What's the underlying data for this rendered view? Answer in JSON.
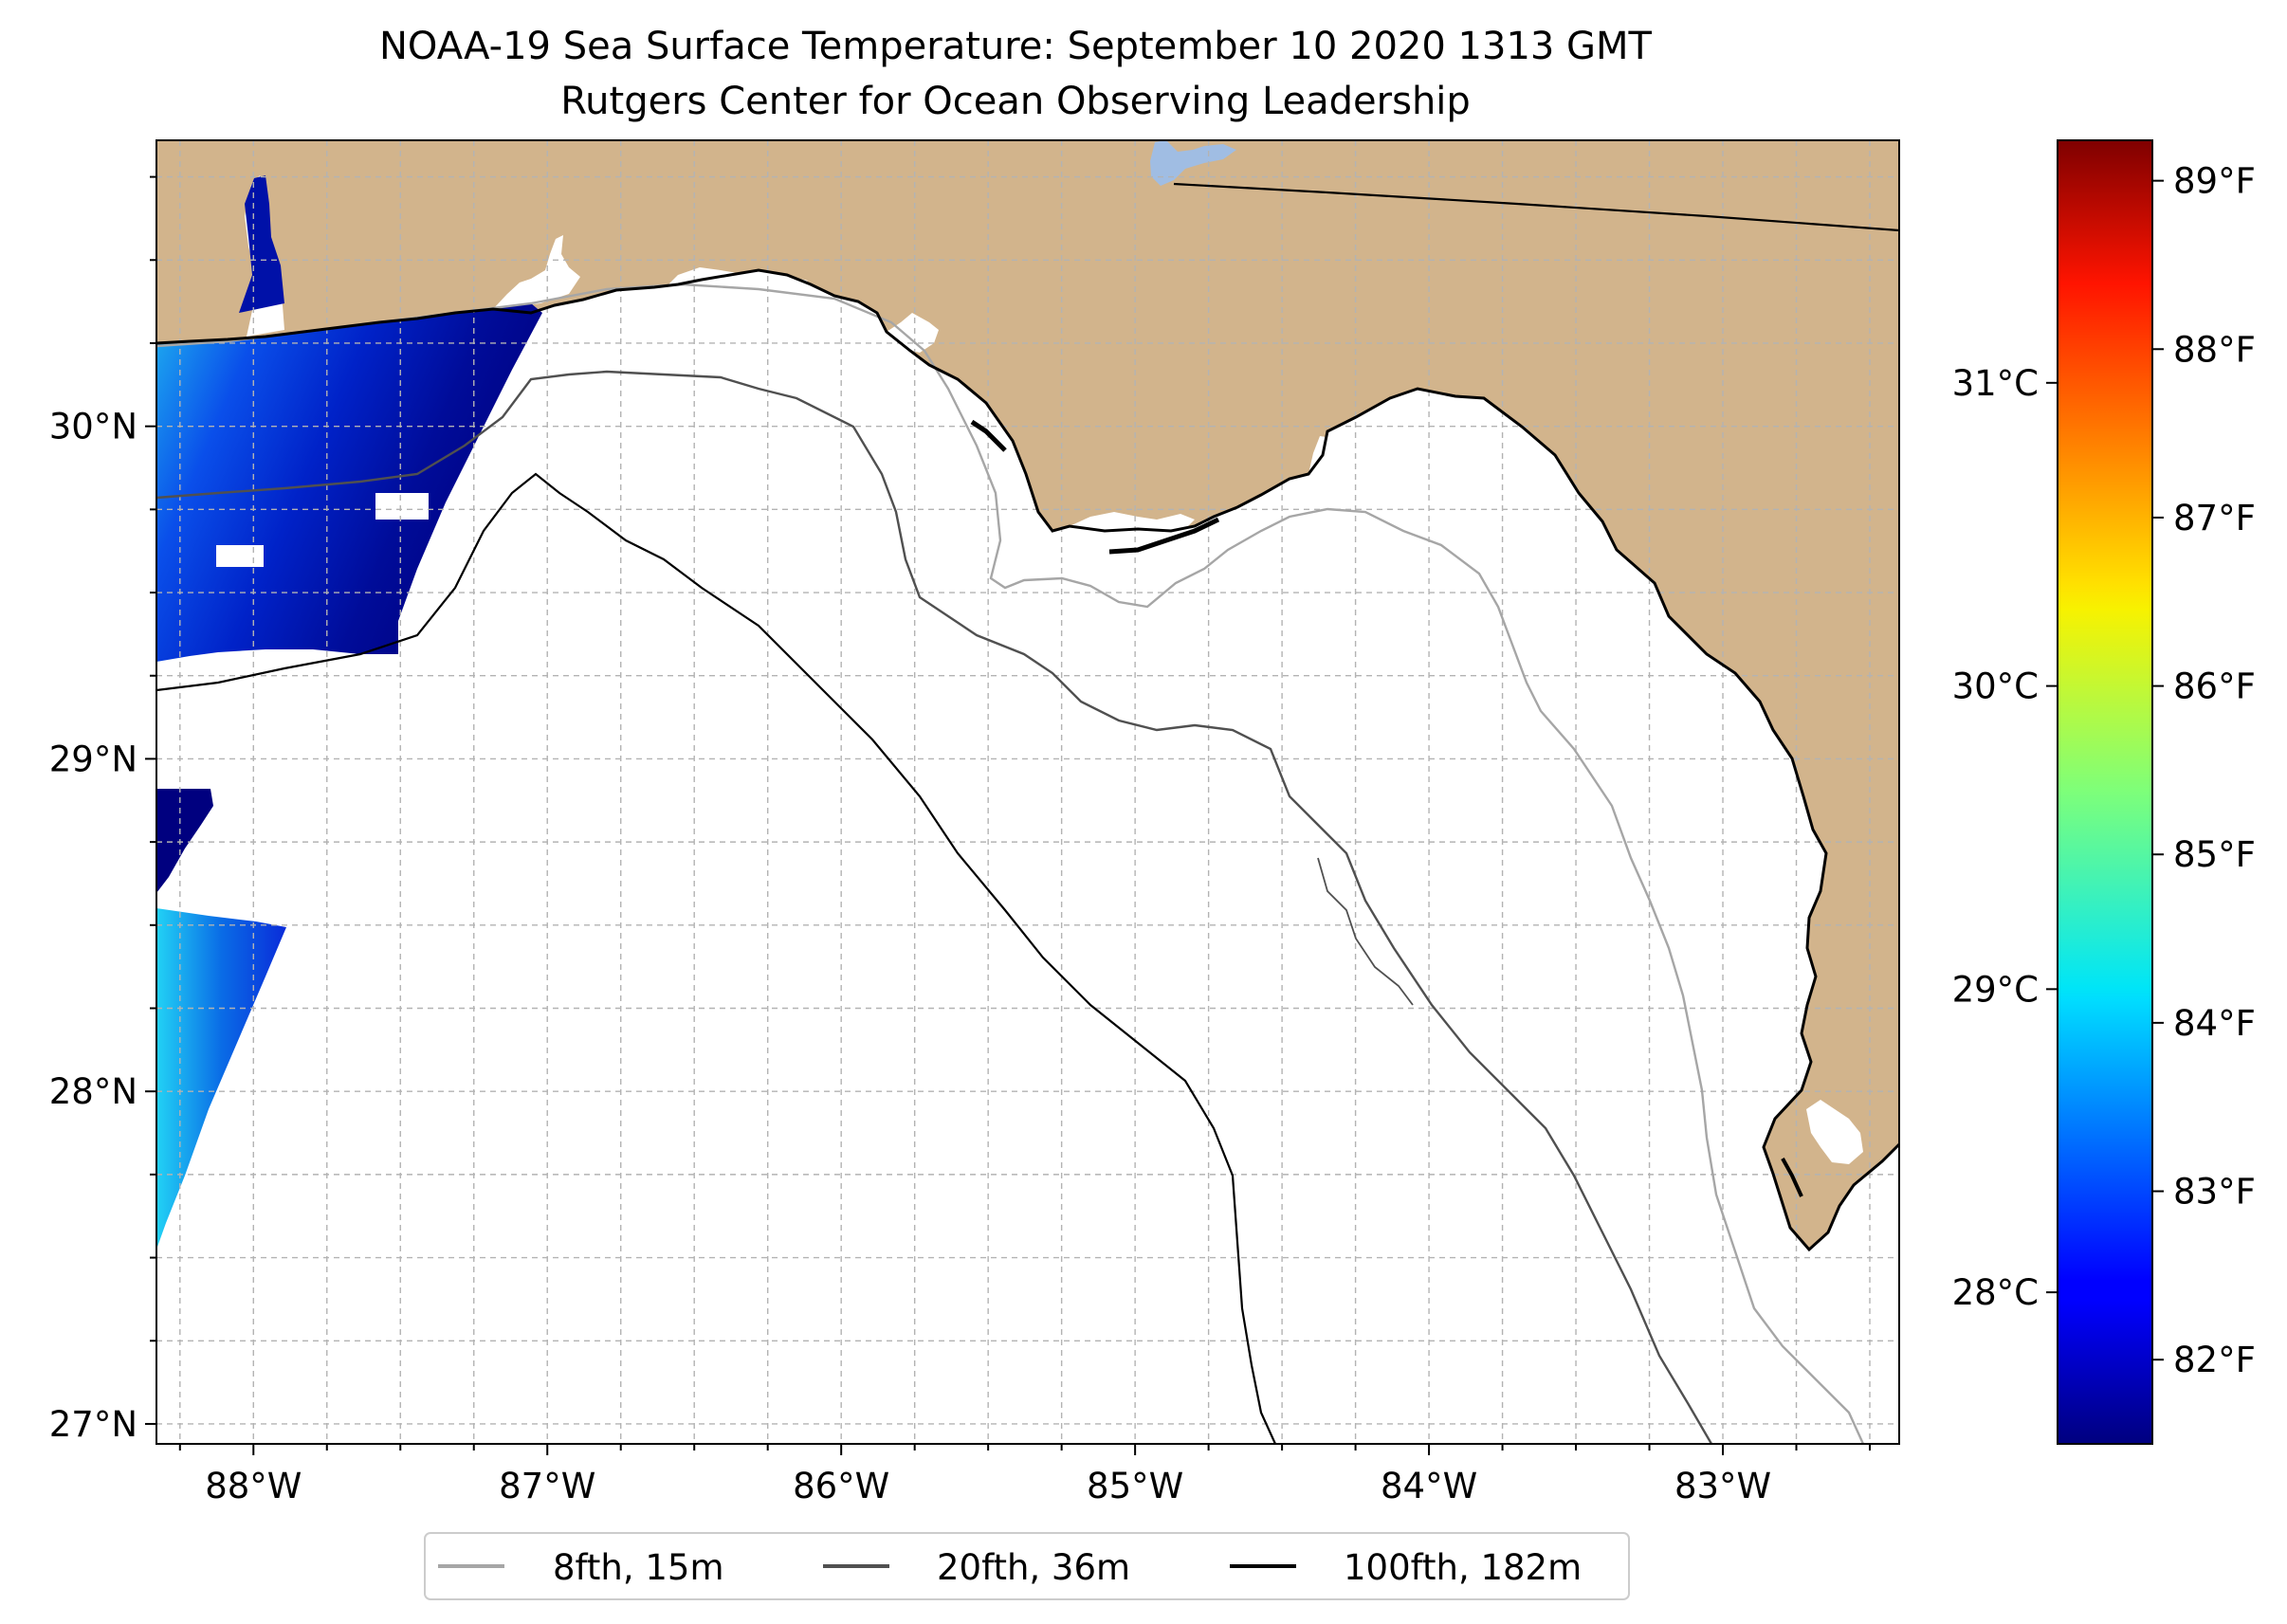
{
  "title": {
    "line1": "NOAA-19 Sea Surface Temperature: September 10 2020 1313 GMT",
    "line2": "Rutgers Center for Ocean Observing Leadership"
  },
  "map": {
    "lon_range": [
      -88.33,
      -82.4
    ],
    "lat_range": [
      26.94,
      30.86
    ],
    "lon_ticks": [
      {
        "value": -88,
        "label": "88°W"
      },
      {
        "value": -87,
        "label": "87°W"
      },
      {
        "value": -86,
        "label": "86°W"
      },
      {
        "value": -85,
        "label": "85°W"
      },
      {
        "value": -84,
        "label": "84°W"
      },
      {
        "value": -83,
        "label": "83°W"
      }
    ],
    "lat_ticks": [
      {
        "value": 27,
        "label": "27°N"
      },
      {
        "value": 28,
        "label": "28°N"
      },
      {
        "value": 29,
        "label": "29°N"
      },
      {
        "value": 30,
        "label": "30°N"
      }
    ],
    "grid": true,
    "grid_step_deg": 0.25,
    "colors": {
      "land": "#d2b48c",
      "ocean": "#ffffff",
      "lake": "#a0bde3",
      "coastline": "#000000",
      "grid": "#aaaaaa"
    }
  },
  "legend": {
    "placement": "bottom-center",
    "items": [
      {
        "label": "8fth, 15m",
        "color": "#a6a6a6"
      },
      {
        "label": "20fth, 36m",
        "color": "#505050"
      },
      {
        "label": "100fth, 182m",
        "color": "#000000"
      }
    ]
  },
  "colorbar": {
    "colormap": "jet",
    "range_c": [
      27.5,
      31.8
    ],
    "celsius_ticks": [
      {
        "value": 28,
        "label": "28°C"
      },
      {
        "value": 29,
        "label": "29°C"
      },
      {
        "value": 30,
        "label": "30°C"
      },
      {
        "value": 31,
        "label": "31°C"
      }
    ],
    "fahrenheit_ticks": [
      {
        "value": 82,
        "label": "82°F"
      },
      {
        "value": 83,
        "label": "83°F"
      },
      {
        "value": 84,
        "label": "84°F"
      },
      {
        "value": 85,
        "label": "85°F"
      },
      {
        "value": 86,
        "label": "86°F"
      },
      {
        "value": 87,
        "label": "87°F"
      },
      {
        "value": 88,
        "label": "88°F"
      },
      {
        "value": 89,
        "label": "89°F"
      }
    ]
  }
}
